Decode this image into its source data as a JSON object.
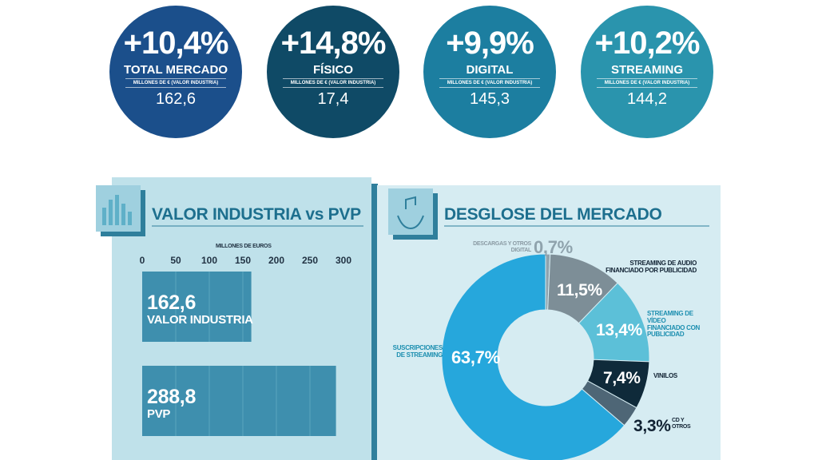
{
  "stats": [
    {
      "change": "+10,4%",
      "label": "TOTAL MERCADO",
      "unit": "MILLONES DE € (VALOR INDUSTRIA)",
      "value": "162,6",
      "color": "#1b4f8b"
    },
    {
      "change": "+14,8%",
      "label": "FÍSICO",
      "unit": "MILLONES DE € (VALOR INDUSTRIA)",
      "value": "17,4",
      "color": "#0f4a66"
    },
    {
      "change": "+9,9%",
      "label": "DIGITAL",
      "unit": "MILLONES DE € (VALOR INDUSTRIA)",
      "value": "145,3",
      "color": "#1c7ea0"
    },
    {
      "change": "+10,2%",
      "label": "STREAMING",
      "unit": "MILLONES DE € (VALOR INDUSTRIA)",
      "value": "144,2",
      "color": "#2a94ad"
    }
  ],
  "chart_data": [
    {
      "type": "bar",
      "title": "VALOR INDUSTRIA vs PVP",
      "axis_label": "MILLONES DE EUROS",
      "categories": [
        "VALOR INDUSTRIA",
        "PVP"
      ],
      "values": [
        162.6,
        288.8
      ],
      "value_labels": [
        "162,6",
        "288,8"
      ],
      "xlim": [
        0,
        300
      ],
      "xticks": [
        0,
        50,
        100,
        150,
        200,
        250,
        300
      ],
      "color": "#3e8fae"
    },
    {
      "type": "pie",
      "title": "DESGLOSE DEL MERCADO",
      "categories": [
        "DESCARGAS Y OTROS DIGITAL",
        "STREAMING DE AUDIO FINANCIADO POR PUBLICIDAD",
        "STREAMING DE VÍDEO FINANCIADO CON PUBLICIDAD",
        "VINILOS",
        "CD Y OTROS",
        "SUSCRIPCIONES DE STREAMING"
      ],
      "values": [
        0.7,
        11.5,
        13.4,
        7.4,
        3.3,
        63.7
      ],
      "value_labels": [
        "0,7%",
        "11,5%",
        "13,4%",
        "7,4%",
        "3,3%",
        "63,7%"
      ],
      "colors": [
        "#8fa3ad",
        "#7d8e97",
        "#5cc0d8",
        "#0f2a3a",
        "#4e6676",
        "#26a7dc"
      ]
    }
  ]
}
